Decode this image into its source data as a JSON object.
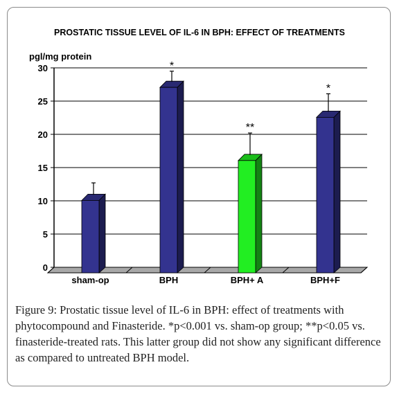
{
  "chart_data": {
    "type": "bar",
    "title": "PROSTATIC TISSUE LEVEL OF IL-6 IN BPH: EFFECT OF TREATMENTS",
    "ylabel": "pgl/mg protein",
    "xlabel": "",
    "categories": [
      "sham-op",
      "BPH",
      "BPH+ A",
      "BPH+F"
    ],
    "values": [
      11,
      28,
      17,
      23.5
    ],
    "errors": [
      1.7,
      1.5,
      3.2,
      2.6
    ],
    "annotations": [
      "",
      "*",
      "**",
      "*"
    ],
    "bar_colors": [
      "#33338f",
      "#33338f",
      "#22ee22",
      "#33338f"
    ],
    "ylim": [
      0,
      30
    ],
    "yticks": [
      0,
      5,
      10,
      15,
      20,
      25,
      30
    ],
    "grid": true
  },
  "caption": {
    "label": "Figure 9:",
    "text": "Prostatic tissue level of IL-6 in BPH: effect of treatments with phytocompound and Finasteride. *p<0.001 vs. sham-op group; **p<0.05 vs. finasteride-treated rats. This latter group did not show any significant difference as compared to untreated BPH model."
  }
}
